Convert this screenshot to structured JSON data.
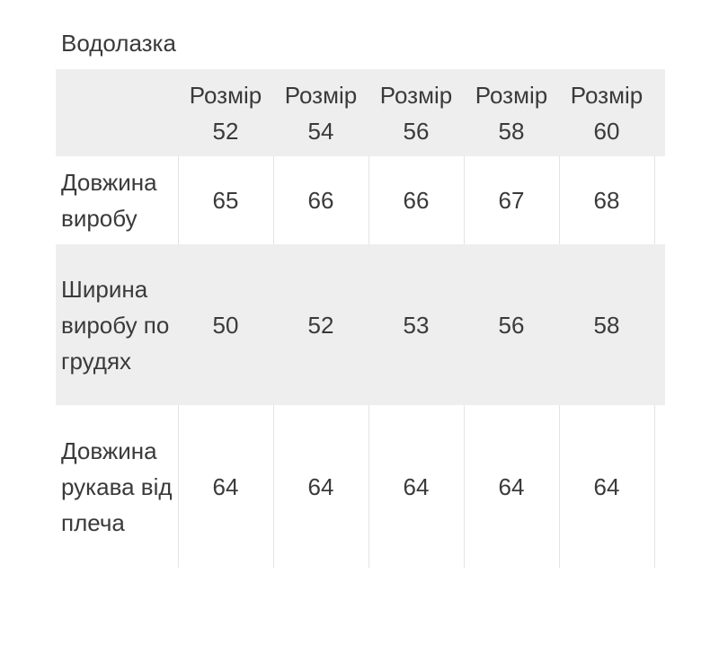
{
  "title": "Водолазка",
  "table": {
    "headers": [
      {
        "label": "Розмір",
        "size": "52"
      },
      {
        "label": "Розмір",
        "size": "54"
      },
      {
        "label": "Розмір",
        "size": "56"
      },
      {
        "label": "Розмір",
        "size": "58"
      },
      {
        "label": "Розмір",
        "size": "60"
      }
    ],
    "rows": [
      {
        "label": "Довжина виробу",
        "values": [
          "65",
          "66",
          "66",
          "67",
          "68"
        ]
      },
      {
        "label": "Ширина виробу по грудях",
        "values": [
          "50",
          "52",
          "53",
          "56",
          "58"
        ]
      },
      {
        "label": "Довжина рукава від плеча",
        "values": [
          "64",
          "64",
          "64",
          "64",
          "64"
        ]
      }
    ]
  }
}
